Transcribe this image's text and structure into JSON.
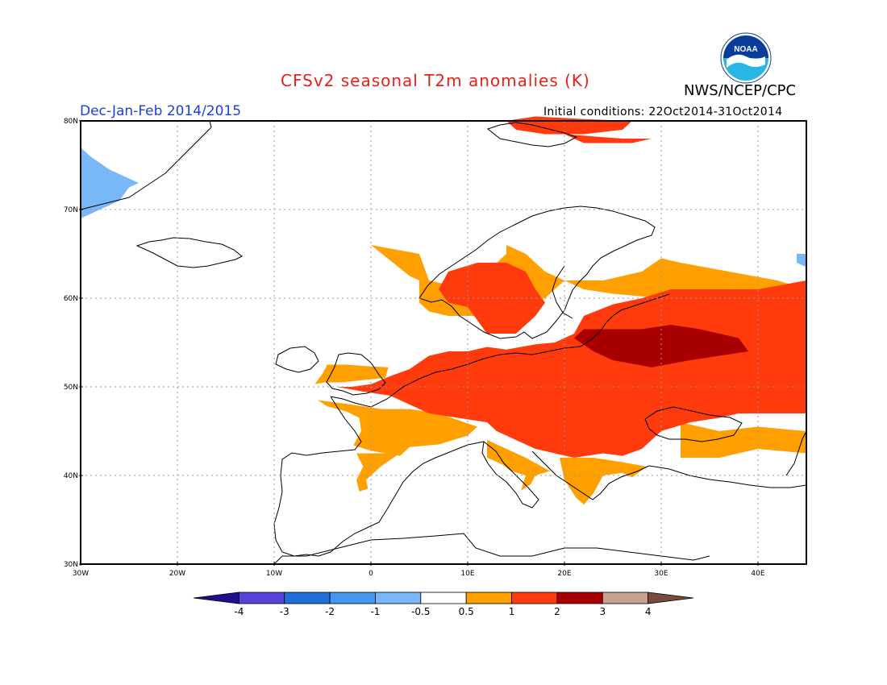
{
  "header": {
    "title": "CFSv2 seasonal T2m anomalies (K)",
    "season": "Dec-Jan-Feb 2014/2015",
    "agency": "NWS/NCEP/CPC",
    "initial_conditions": "Initial conditions: 22Oct2014-31Oct2014",
    "logo_text": "NOAA"
  },
  "colors": {
    "title": "#e8201a",
    "season": "#1c3fdc",
    "le_neg4": "#1e0f8c",
    "neg4_neg3": "#5444d8",
    "neg3_neg2": "#1f6ed8",
    "neg2_neg1": "#4696f0",
    "neg1_neg05": "#78b8f8",
    "neutral": "#ffffff",
    "p05_1": "#ffa000",
    "p1_2": "#ff3a0c",
    "p2_3": "#a80000",
    "p3_4": "#c8a090",
    "ge_4": "#7a4a3c"
  },
  "axes": {
    "lat_labels": [
      "80N",
      "70N",
      "60N",
      "50N",
      "40N",
      "30N"
    ],
    "lon_labels": [
      "30W",
      "20W",
      "10W",
      "0",
      "10E",
      "20E",
      "30E",
      "40E"
    ],
    "lon_range": [
      -30,
      45
    ],
    "lat_range": [
      30,
      80
    ],
    "grid": "dotted"
  },
  "colorbar": {
    "labels": [
      "-4",
      "-3",
      "-2",
      "-1",
      "-0.5",
      "0.5",
      "1",
      "2",
      "3",
      "4"
    ]
  },
  "anomaly_regions": [
    {
      "level": "p05_1",
      "polys": [
        [
          [
            -5.5,
            48.5
          ],
          [
            -2,
            48
          ],
          [
            1,
            47.5
          ],
          [
            4,
            47.5
          ],
          [
            7,
            47
          ],
          [
            11,
            45.5
          ],
          [
            10,
            44.5
          ],
          [
            8.5,
            44
          ],
          [
            7,
            43.5
          ],
          [
            4,
            43.2
          ],
          [
            3,
            42.2
          ],
          [
            0,
            42.8
          ],
          [
            -1.8,
            43.4
          ],
          [
            -1,
            45
          ],
          [
            -1.2,
            46.5
          ],
          [
            -2.5,
            47.2
          ],
          [
            -4.5,
            47.8
          ]
        ],
        [
          [
            -1.5,
            42.5
          ],
          [
            3,
            42.5
          ],
          [
            1,
            41
          ],
          [
            0,
            40
          ],
          [
            -0.5,
            39.5
          ],
          [
            -0.3,
            38.5
          ],
          [
            -1.2,
            38.2
          ],
          [
            -1.5,
            39.5
          ],
          [
            -0.8,
            41
          ]
        ],
        [
          [
            -4.5,
            52.5
          ],
          [
            -2.5,
            52.5
          ],
          [
            0,
            52.3
          ],
          [
            1.8,
            52.2
          ],
          [
            1.5,
            51
          ],
          [
            -0.5,
            50.8
          ],
          [
            -3,
            50.5
          ],
          [
            -4.8,
            50.5
          ],
          [
            -5.8,
            50.3
          ],
          [
            -5,
            51.5
          ]
        ],
        [
          [
            12,
            44
          ],
          [
            16,
            42
          ],
          [
            18.5,
            40.5
          ],
          [
            17,
            40
          ],
          [
            16.5,
            39
          ],
          [
            15.5,
            38.3
          ],
          [
            16,
            40
          ],
          [
            14.5,
            40.5
          ],
          [
            13.5,
            41.3
          ],
          [
            12,
            42
          ]
        ],
        [
          [
            19.5,
            42
          ],
          [
            23,
            42
          ],
          [
            26,
            41.5
          ],
          [
            28.5,
            41
          ],
          [
            27,
            39.8
          ],
          [
            26,
            40.3
          ],
          [
            24,
            40
          ],
          [
            23,
            38
          ],
          [
            22,
            36.7
          ],
          [
            21.2,
            37.5
          ],
          [
            20,
            39.5
          ]
        ],
        [
          [
            0,
            66
          ],
          [
            5,
            65
          ],
          [
            6,
            62
          ],
          [
            10,
            61
          ],
          [
            12,
            63
          ],
          [
            14,
            65
          ],
          [
            14,
            66
          ],
          [
            16,
            65
          ],
          [
            18,
            63
          ],
          [
            20,
            62
          ],
          [
            18,
            60
          ],
          [
            14,
            59
          ],
          [
            12,
            58
          ],
          [
            8,
            58
          ],
          [
            6,
            58.5
          ],
          [
            5,
            59.5
          ],
          [
            5,
            62
          ],
          [
            4,
            62.5
          ]
        ],
        [
          [
            20,
            62
          ],
          [
            24,
            62
          ],
          [
            26,
            62.5
          ],
          [
            28,
            63
          ],
          [
            30,
            64.5
          ],
          [
            32,
            64
          ],
          [
            37,
            63
          ],
          [
            42,
            62
          ],
          [
            45,
            61
          ],
          [
            45,
            58
          ],
          [
            42,
            57
          ],
          [
            38,
            58
          ],
          [
            34,
            59
          ],
          [
            30,
            60
          ],
          [
            25,
            60.5
          ],
          [
            22,
            61
          ]
        ],
        [
          [
            32,
            46
          ],
          [
            36,
            45
          ],
          [
            40,
            45.5
          ],
          [
            45,
            45
          ],
          [
            45,
            42.5
          ],
          [
            40,
            43
          ],
          [
            36,
            42
          ],
          [
            32,
            42
          ]
        ]
      ]
    },
    {
      "level": "p1_2",
      "polys": [
        [
          [
            -3.5,
            50
          ],
          [
            -1,
            49.5
          ],
          [
            2,
            49
          ],
          [
            4,
            48
          ],
          [
            6,
            47
          ],
          [
            9,
            46.5
          ],
          [
            12,
            46
          ],
          [
            13,
            45
          ],
          [
            15,
            44
          ],
          [
            17,
            43
          ],
          [
            19,
            42.5
          ],
          [
            21,
            42
          ],
          [
            24,
            42.5
          ],
          [
            26,
            42.2
          ],
          [
            28,
            43
          ],
          [
            29,
            44
          ],
          [
            30,
            45
          ],
          [
            33,
            46
          ],
          [
            36,
            46.5
          ],
          [
            38,
            47
          ],
          [
            45,
            47
          ],
          [
            45,
            62
          ],
          [
            40,
            61
          ],
          [
            35,
            61
          ],
          [
            31,
            61
          ],
          [
            28,
            60
          ],
          [
            25,
            59.3
          ],
          [
            22,
            58
          ],
          [
            21,
            56
          ],
          [
            19,
            55
          ],
          [
            17,
            54.8
          ],
          [
            14,
            54.2
          ],
          [
            12,
            54.5
          ],
          [
            10,
            54
          ],
          [
            8,
            54
          ],
          [
            6,
            53.5
          ],
          [
            4,
            52
          ],
          [
            2,
            51.2
          ],
          [
            0,
            50.3
          ],
          [
            -2,
            50
          ]
        ],
        [
          [
            8,
            63
          ],
          [
            11,
            64
          ],
          [
            14,
            64
          ],
          [
            16,
            63
          ],
          [
            17,
            61
          ],
          [
            18,
            59.5
          ],
          [
            17,
            58
          ],
          [
            15,
            56
          ],
          [
            12,
            56
          ],
          [
            11,
            57.5
          ],
          [
            10,
            59
          ],
          [
            8,
            59.5
          ],
          [
            7,
            61
          ]
        ],
        [
          [
            14,
            80
          ],
          [
            17,
            80.5
          ],
          [
            22,
            80.2
          ],
          [
            27,
            80
          ],
          [
            26,
            79
          ],
          [
            22,
            78.5
          ],
          [
            18,
            78.5
          ],
          [
            15,
            79
          ]
        ],
        [
          [
            20,
            78.5
          ],
          [
            26,
            78
          ],
          [
            29,
            78
          ],
          [
            27,
            77.5
          ],
          [
            22,
            77.5
          ]
        ]
      ]
    },
    {
      "level": "p2_3",
      "polys": [
        [
          [
            22,
            56.5
          ],
          [
            28,
            56.5
          ],
          [
            31,
            57
          ],
          [
            34,
            56.5
          ],
          [
            36,
            56
          ],
          [
            38,
            55.5
          ],
          [
            39,
            54
          ],
          [
            36,
            53.5
          ],
          [
            33,
            53
          ],
          [
            29,
            52.2
          ],
          [
            25,
            53
          ],
          [
            23,
            54
          ],
          [
            21,
            55.5
          ]
        ]
      ]
    },
    {
      "level": "neg1_neg05",
      "polys": [
        [
          [
            -30,
            69
          ],
          [
            -28,
            70
          ],
          [
            -26,
            71
          ],
          [
            -25,
            72.5
          ],
          [
            -24,
            73
          ],
          [
            -27,
            74.5
          ],
          [
            -29,
            76
          ],
          [
            -30,
            77
          ],
          [
            -30,
            69
          ]
        ],
        [
          [
            44,
            64
          ],
          [
            45,
            63.5
          ],
          [
            45,
            65
          ],
          [
            44,
            65
          ]
        ]
      ]
    }
  ]
}
